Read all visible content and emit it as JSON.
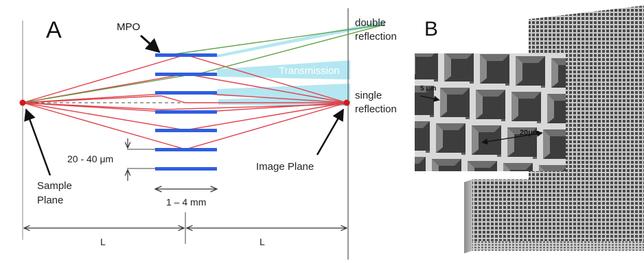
{
  "panel_a": {
    "label": "A",
    "mpo_label": "MPO",
    "double_reflection": [
      "double",
      "reflection"
    ],
    "transmission": "Transmission",
    "single_reflection": [
      "single",
      "reflection"
    ],
    "image_plane": "Image Plane",
    "sample_plane": [
      "Sample",
      "Plane"
    ],
    "pore_spacing": "20 - 40 μm",
    "thickness": "1 – 4 mm",
    "left_distance": "L",
    "right_distance": "L"
  },
  "panel_b": {
    "label": "B",
    "wall_width": "5 μm",
    "pore_width": "20μm"
  },
  "colors": {
    "mpo_plates": "#2f5fe0",
    "single_reflection_rays": "#e0414b",
    "double_reflection_rays": "#5a9e3a",
    "transmission_beam": "#a7e3ef",
    "focal_points": "#d8151b"
  }
}
